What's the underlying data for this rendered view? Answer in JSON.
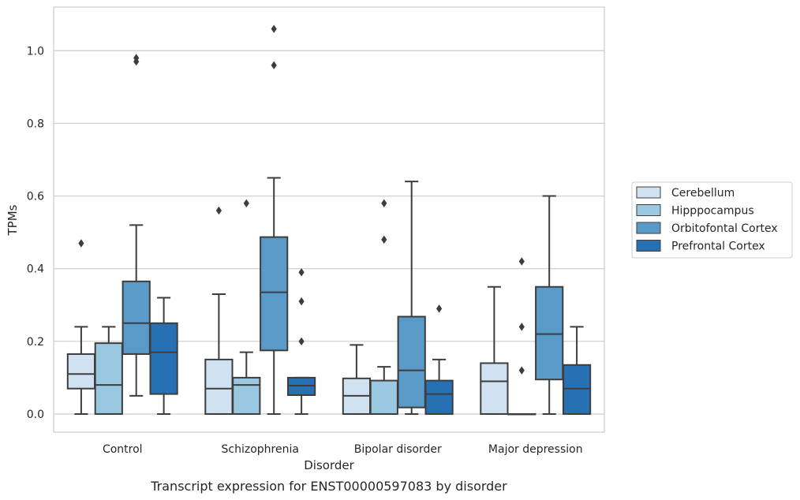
{
  "chart_data": {
    "type": "box",
    "title": "",
    "caption": "Transcript expression for ENST00000597083 by disorder",
    "xlabel": "Disorder",
    "ylabel": "TPMs",
    "ylim": [
      -0.05,
      1.12
    ],
    "yticks": [
      0.0,
      0.2,
      0.4,
      0.6,
      0.8,
      1.0
    ],
    "grid": true,
    "legend_position": "right",
    "categories": [
      "Control",
      "Schizophrenia",
      "Bipolar disorder",
      "Major depression"
    ],
    "series": [
      {
        "name": "Cerebellum",
        "color": "#d0e1f2",
        "boxes": [
          {
            "min": 0.0,
            "q1": 0.07,
            "median": 0.11,
            "q3": 0.165,
            "max": 0.24,
            "outliers": [
              0.47
            ]
          },
          {
            "min": 0.0,
            "q1": 0.0,
            "median": 0.07,
            "q3": 0.15,
            "max": 0.33,
            "outliers": [
              0.56
            ]
          },
          {
            "min": 0.0,
            "q1": 0.0,
            "median": 0.05,
            "q3": 0.098,
            "max": 0.19,
            "outliers": []
          },
          {
            "min": 0.0,
            "q1": 0.0,
            "median": 0.09,
            "q3": 0.14,
            "max": 0.35,
            "outliers": []
          }
        ]
      },
      {
        "name": "Hipppocampus",
        "color": "#9ac8e0",
        "boxes": [
          {
            "min": 0.0,
            "q1": 0.0,
            "median": 0.08,
            "q3": 0.195,
            "max": 0.24,
            "outliers": []
          },
          {
            "min": 0.0,
            "q1": 0.0,
            "median": 0.08,
            "q3": 0.1,
            "max": 0.17,
            "outliers": [
              0.58
            ]
          },
          {
            "min": 0.0,
            "q1": 0.0,
            "median": 0.0,
            "q3": 0.092,
            "max": 0.13,
            "outliers": [
              0.48,
              0.58
            ]
          },
          {
            "min": 0.0,
            "q1": 0.0,
            "median": 0.0,
            "q3": 0.0,
            "max": 0.0,
            "outliers": [
              0.12,
              0.24,
              0.42
            ]
          }
        ]
      },
      {
        "name": "Orbitofontal Cortex",
        "color": "#5a9ac9",
        "boxes": [
          {
            "min": 0.05,
            "q1": 0.165,
            "median": 0.25,
            "q3": 0.365,
            "max": 0.52,
            "outliers": [
              0.97,
              0.98
            ]
          },
          {
            "min": 0.0,
            "q1": 0.175,
            "median": 0.335,
            "q3": 0.487,
            "max": 0.65,
            "outliers": [
              0.96,
              1.06
            ]
          },
          {
            "min": 0.0,
            "q1": 0.018,
            "median": 0.12,
            "q3": 0.268,
            "max": 0.64,
            "outliers": []
          },
          {
            "min": 0.0,
            "q1": 0.095,
            "median": 0.22,
            "q3": 0.35,
            "max": 0.6,
            "outliers": []
          }
        ]
      },
      {
        "name": "Prefrontal Cortex",
        "color": "#2870b4",
        "boxes": [
          {
            "min": 0.0,
            "q1": 0.055,
            "median": 0.17,
            "q3": 0.25,
            "max": 0.32,
            "outliers": []
          },
          {
            "min": 0.0,
            "q1": 0.052,
            "median": 0.078,
            "q3": 0.1,
            "max": 0.1,
            "outliers": [
              0.2,
              0.31,
              0.39
            ]
          },
          {
            "min": 0.0,
            "q1": 0.0,
            "median": 0.055,
            "q3": 0.092,
            "max": 0.15,
            "outliers": [
              0.29
            ]
          },
          {
            "min": 0.0,
            "q1": 0.0,
            "median": 0.07,
            "q3": 0.135,
            "max": 0.24,
            "outliers": []
          }
        ]
      }
    ]
  }
}
